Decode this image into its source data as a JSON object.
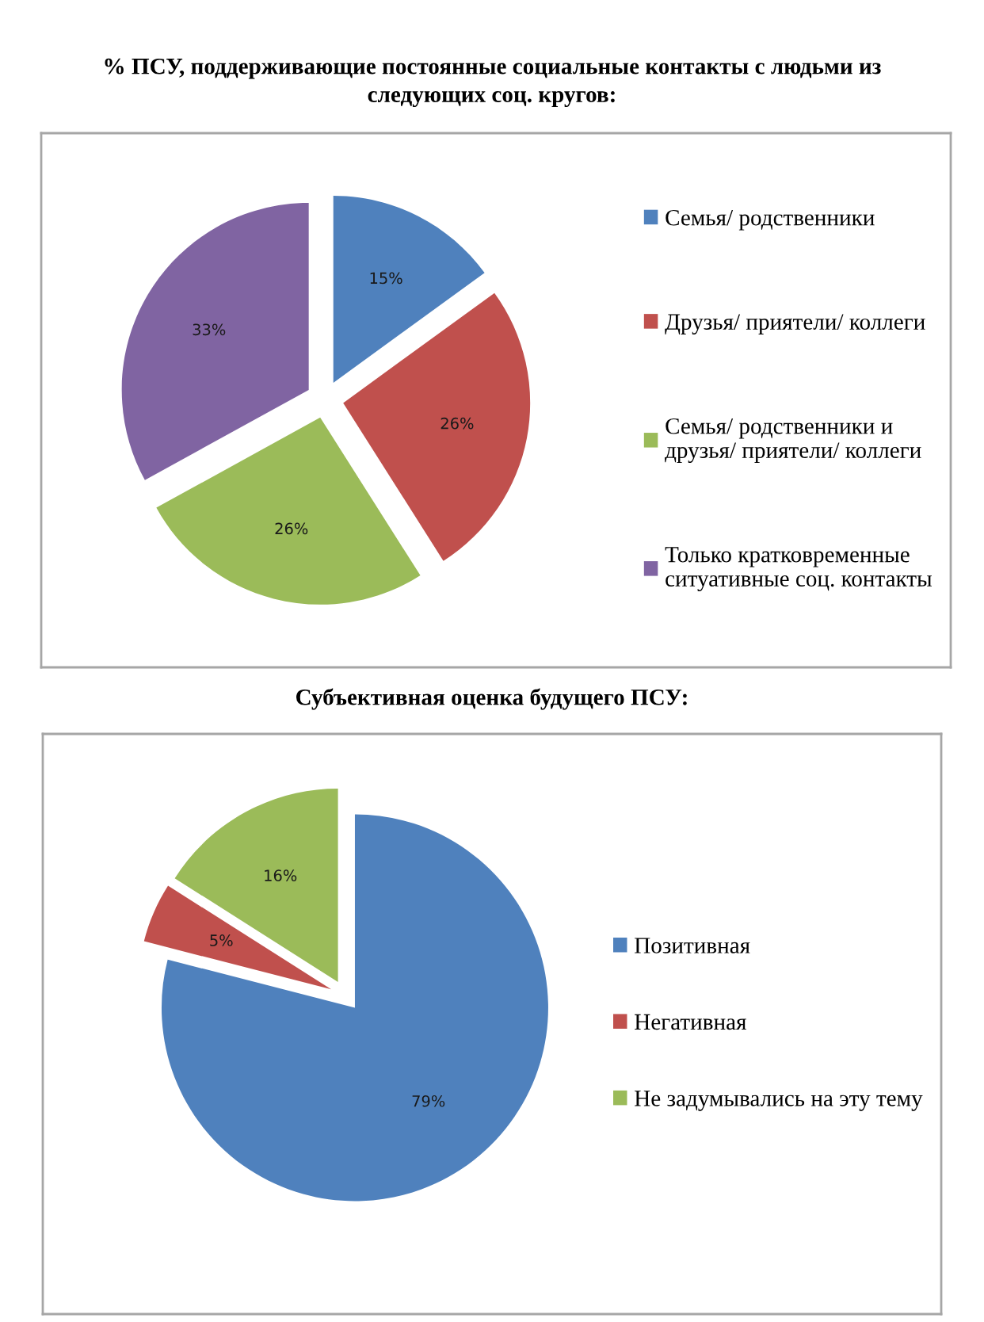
{
  "chart_data": [
    {
      "type": "pie",
      "title": "% ПСУ, поддерживающие постоянные социальные контакты с людьми из\nследующих соц. кругов:",
      "categories": [
        "Семья/ родственники",
        "Друзья/ приятели/ коллеги",
        "Семья/ родственники и\nдрузья/ приятели/ коллеги",
        "Только кратковременные\nситуативные соц. контакты"
      ],
      "values": [
        15,
        26,
        26,
        33
      ],
      "colors": [
        "#4f81bd",
        "#c0504d",
        "#9bbb59",
        "#8064a2"
      ],
      "value_labels": [
        "15%",
        "26%",
        "26%",
        "33%"
      ],
      "legend": "right"
    },
    {
      "type": "pie",
      "title": "Субъективная оценка будущего ПСУ:",
      "categories": [
        "Позитивная",
        "Негативная",
        "Не задумывались на эту тему"
      ],
      "values": [
        79,
        5,
        16
      ],
      "colors": [
        "#4f81bd",
        "#c0504d",
        "#9bbb59"
      ],
      "value_labels": [
        "79%",
        "5%",
        "16%"
      ],
      "legend": "right"
    }
  ]
}
